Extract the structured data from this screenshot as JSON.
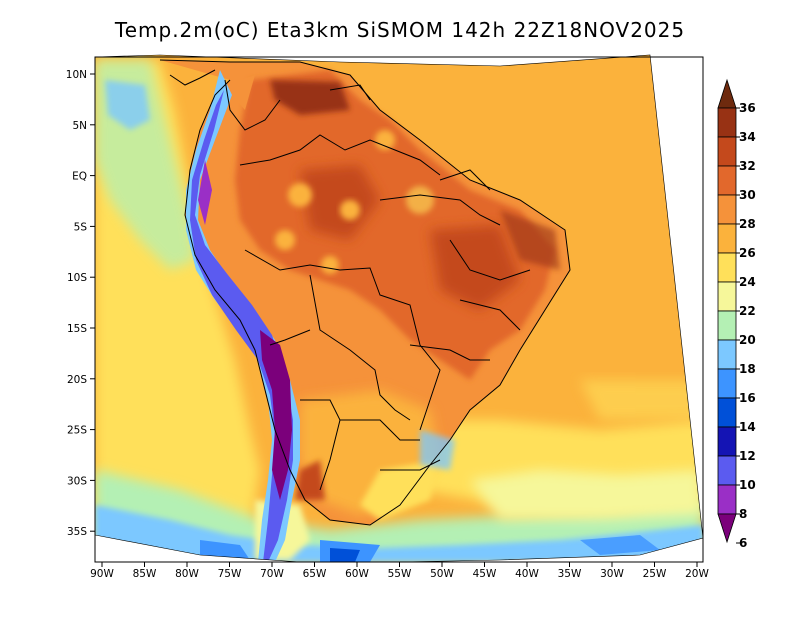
{
  "title": "Temp.2m(oC) Eta3km SiSMOM 142h 22Z18NOV2025",
  "map": {
    "lat_labels": [
      "10N",
      "5N",
      "EQ",
      "5S",
      "10S",
      "15S",
      "20S",
      "25S",
      "30S",
      "35S"
    ],
    "lon_labels": [
      "90W",
      "85W",
      "80W",
      "75W",
      "70W",
      "65W",
      "60W",
      "55W",
      "50W",
      "45W",
      "40W",
      "35W",
      "30W",
      "25W",
      "20W"
    ]
  },
  "colorbar": {
    "labels": [
      "6",
      "8",
      "10",
      "12",
      "14",
      "16",
      "18",
      "20",
      "22",
      "24",
      "26",
      "28",
      "30",
      "32",
      "34",
      "36"
    ],
    "colors": [
      "#7b007b",
      "#9a2fc6",
      "#5b5bf0",
      "#1414b4",
      "#0050d8",
      "#3d94ff",
      "#7cc8ff",
      "#b4f0b4",
      "#f6f79a",
      "#ffe05a",
      "#fbb23c",
      "#f5923a",
      "#e2682c",
      "#c4491c",
      "#983214",
      "#6e2a0e"
    ],
    "min_label": "6",
    "max_label": "36"
  },
  "colors": {
    "ocean_warm": "#fbb23c",
    "ocean_mild": "#ffe05a",
    "ocean_cool": "#b4f0b4",
    "ocean_cold": "#7cc8ff",
    "land_hot": "#f5923a",
    "land_very_hot": "#e2682c",
    "andes": "#5b5bf0"
  }
}
